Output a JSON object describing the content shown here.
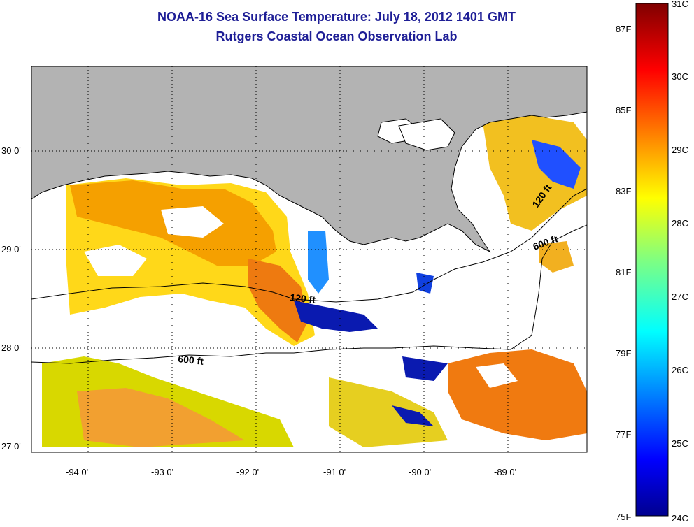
{
  "title": "NOAA-16 Sea Surface Temperature:  July 18, 2012 1401 GMT",
  "subtitle": "Rutgers Coastal Ocean Observation Lab",
  "map": {
    "lat_labels": [
      "27 0'",
      "28 0'",
      "29 0'",
      "30 0'"
    ],
    "lon_labels": [
      "-94 0'",
      "-93 0'",
      "-92 0'",
      "-91 0'",
      "-90 0'",
      "-89 0'"
    ],
    "land_color": "#b3b3b3",
    "contours": {
      "shelf_120": "120 ft",
      "shelf_120_east": "120 ft",
      "slope_600": "600 ft",
      "slope_600_east": "600 ft"
    }
  },
  "colorbar": {
    "fahrenheit_labels": [
      "87F",
      "85F",
      "83F",
      "81F",
      "79F",
      "77F",
      "75F"
    ],
    "celsius_labels": [
      "31C",
      "30C",
      "29C",
      "28C",
      "27C",
      "26C",
      "25C",
      "24C"
    ],
    "colormap": "jet",
    "range_c": [
      24,
      31
    ],
    "range_f": [
      75,
      87
    ]
  }
}
